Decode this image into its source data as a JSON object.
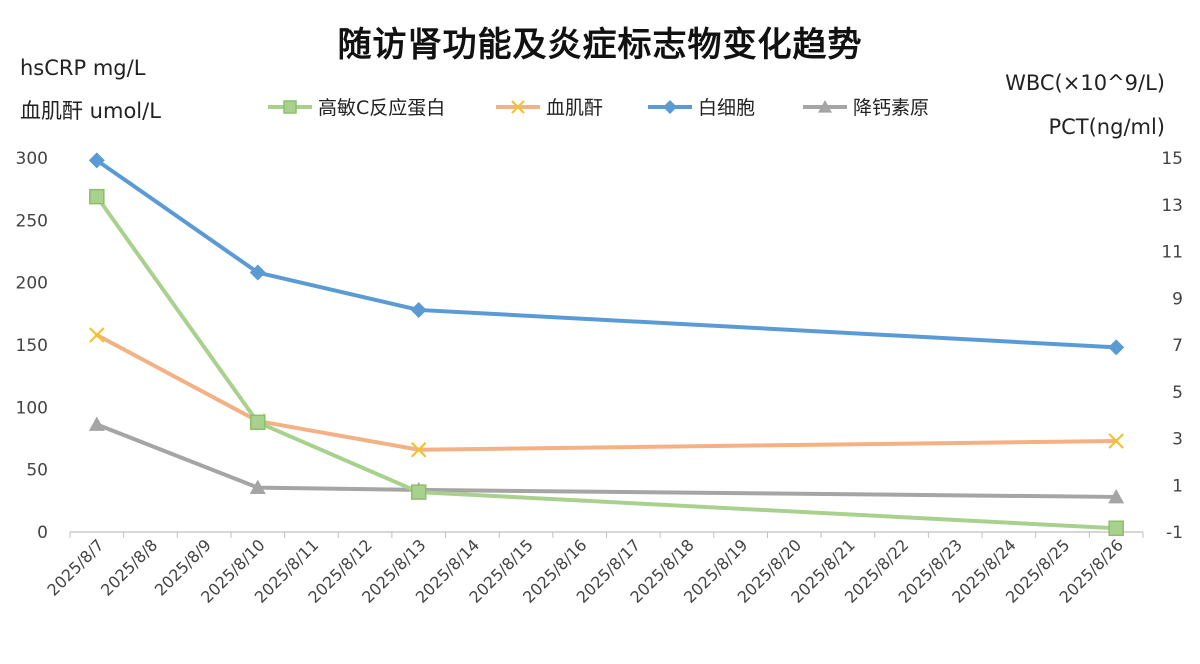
{
  "chart_data": {
    "type": "line",
    "title": "随访肾功能及炎症标志物变化趋势",
    "ylabel_left": [
      "hsCRP mg/L",
      "血肌酐 umol/L"
    ],
    "ylabel_right": [
      "WBC(×10^9/L)",
      "PCT(ng/ml)"
    ],
    "x": [
      "2025/8/7",
      "2025/8/8",
      "2025/8/9",
      "2025/8/10",
      "2025/8/11",
      "2025/8/12",
      "2025/8/13",
      "2025/8/14",
      "2025/8/15",
      "2025/8/16",
      "2025/8/17",
      "2025/8/18",
      "2025/8/19",
      "2025/8/20",
      "2025/8/21",
      "2025/8/22",
      "2025/8/23",
      "2025/8/24",
      "2025/8/25",
      "2025/8/26"
    ],
    "y_left_ticks": [
      "0",
      "50",
      "100",
      "150",
      "200",
      "250",
      "300"
    ],
    "y_right_ticks": [
      "-1",
      "1",
      "3",
      "5",
      "7",
      "9",
      "11",
      "13",
      "15"
    ],
    "ylim_left": [
      0,
      300
    ],
    "ylim_right": [
      -1,
      15
    ],
    "legend_position": "top",
    "series": [
      {
        "name": "高敏C反应蛋白",
        "axis": "left",
        "color": "#a9d18e",
        "marker": "square",
        "points": [
          [
            "2025/8/7",
            269
          ],
          [
            "2025/8/10",
            88
          ],
          [
            "2025/8/13",
            32
          ],
          [
            "2025/8/26",
            3
          ]
        ]
      },
      {
        "name": "血肌酐",
        "axis": "left",
        "color": "#f4b183",
        "marker": "x",
        "marker_color": "#f2c230",
        "points": [
          [
            "2025/8/7",
            158
          ],
          [
            "2025/8/10",
            89
          ],
          [
            "2025/8/13",
            66
          ],
          [
            "2025/8/26",
            73
          ]
        ]
      },
      {
        "name": "白细胞",
        "axis": "right",
        "color": "#5b9bd5",
        "marker": "diamond",
        "points": [
          [
            "2025/8/7",
            14.9
          ],
          [
            "2025/8/10",
            10.1
          ],
          [
            "2025/8/13",
            8.5
          ],
          [
            "2025/8/26",
            6.9
          ]
        ]
      },
      {
        "name": "降钙素原",
        "axis": "right",
        "color": "#a5a5a5",
        "marker": "triangle",
        "points": [
          [
            "2025/8/7",
            3.6
          ],
          [
            "2025/8/10",
            0.9
          ],
          [
            "2025/8/13",
            0.8
          ],
          [
            "2025/8/26",
            0.5
          ]
        ]
      }
    ]
  }
}
